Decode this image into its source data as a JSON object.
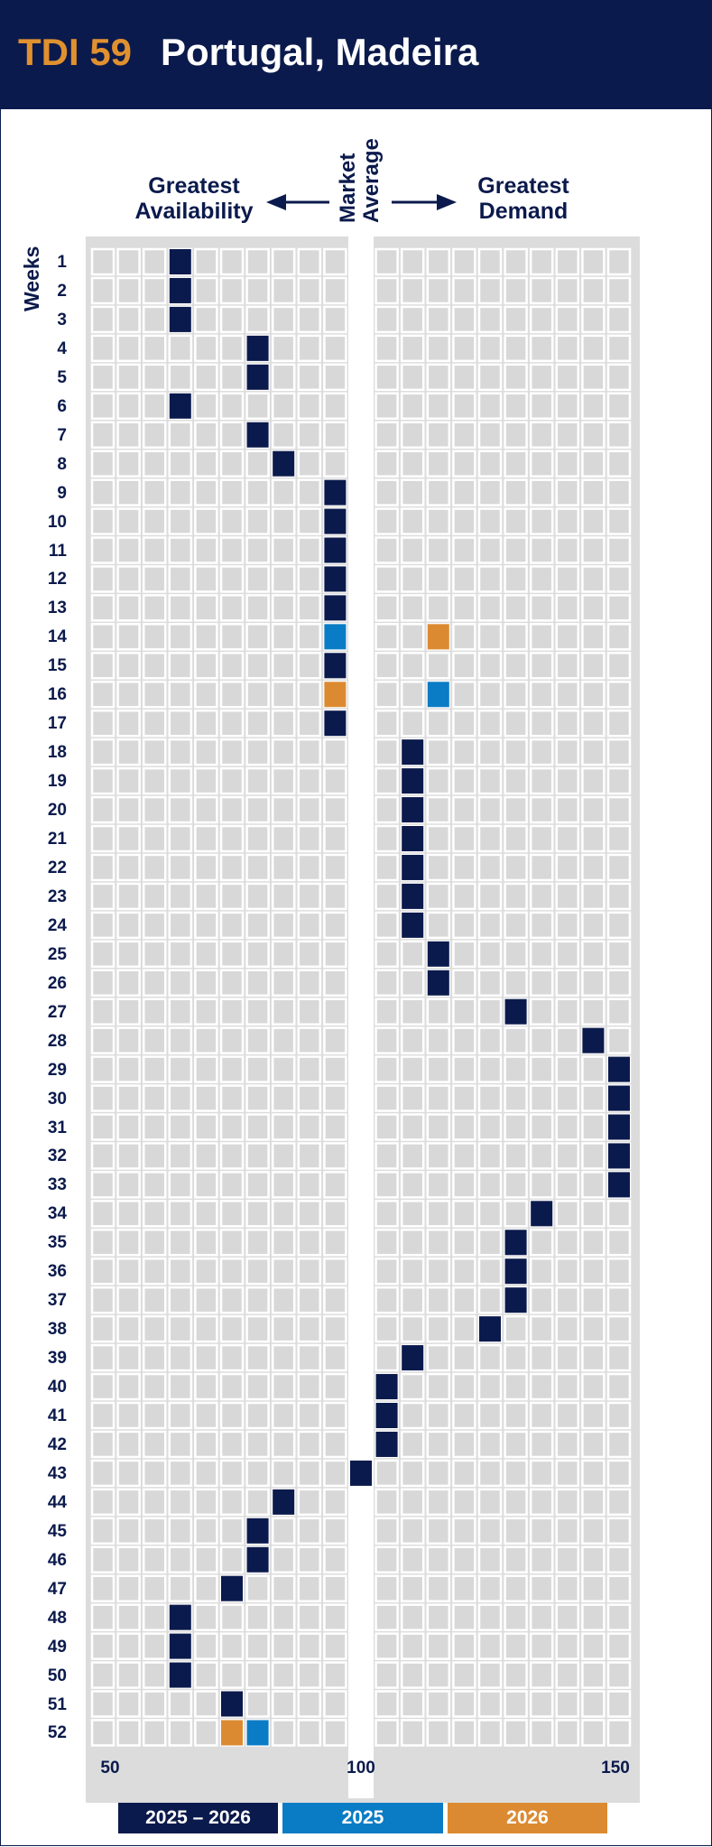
{
  "header": {
    "code": "TDI 59",
    "name": "Portugal, Madeira",
    "code_color": "#e0912f",
    "background": "#0b1a4c"
  },
  "labels": {
    "left_line1": "Greatest",
    "left_line2": "Availability",
    "middle_line1": "Market",
    "middle_line2": "Average",
    "right_line1": "Greatest",
    "right_line2": "Demand",
    "weeks": "Weeks"
  },
  "chart_data": {
    "type": "heatmap",
    "title": "Portugal, Madeira",
    "ylabel": "Weeks",
    "xlim": [
      50,
      150
    ],
    "x_ticks": [
      50,
      100,
      150
    ],
    "column_width": 5,
    "weeks": [
      1,
      2,
      3,
      4,
      5,
      6,
      7,
      8,
      9,
      10,
      11,
      12,
      13,
      14,
      15,
      16,
      17,
      18,
      19,
      20,
      21,
      22,
      23,
      24,
      25,
      26,
      27,
      28,
      29,
      30,
      31,
      32,
      33,
      34,
      35,
      36,
      37,
      38,
      39,
      40,
      41,
      42,
      43,
      44,
      45,
      46,
      47,
      48,
      49,
      50,
      51,
      52
    ],
    "series": [
      {
        "name": "2025 – 2026",
        "color": "#0b1a4c",
        "values": [
          65,
          65,
          65,
          80,
          80,
          65,
          80,
          85,
          95,
          95,
          95,
          95,
          95,
          null,
          95,
          null,
          95,
          110,
          110,
          110,
          110,
          110,
          110,
          110,
          115,
          115,
          130,
          145,
          150,
          150,
          150,
          150,
          150,
          135,
          130,
          130,
          130,
          125,
          110,
          105,
          105,
          105,
          100,
          85,
          80,
          80,
          75,
          65,
          65,
          65,
          75,
          null
        ]
      },
      {
        "name": "2025",
        "color": "#0a7cc5",
        "values": [
          null,
          null,
          null,
          null,
          null,
          null,
          null,
          null,
          null,
          null,
          null,
          null,
          null,
          95,
          null,
          115,
          null,
          null,
          null,
          null,
          null,
          null,
          null,
          null,
          null,
          null,
          null,
          null,
          null,
          null,
          null,
          null,
          null,
          null,
          null,
          null,
          null,
          null,
          null,
          null,
          null,
          null,
          null,
          null,
          null,
          null,
          null,
          null,
          null,
          null,
          null,
          80
        ]
      },
      {
        "name": "2026",
        "color": "#dc8a31",
        "values": [
          null,
          null,
          null,
          null,
          null,
          null,
          null,
          null,
          null,
          null,
          null,
          null,
          null,
          115,
          null,
          95,
          null,
          null,
          null,
          null,
          null,
          null,
          null,
          null,
          null,
          null,
          null,
          null,
          null,
          null,
          null,
          null,
          null,
          null,
          null,
          null,
          null,
          null,
          null,
          null,
          null,
          null,
          null,
          null,
          null,
          null,
          null,
          null,
          null,
          null,
          null,
          75
        ]
      }
    ],
    "legend": "bottom"
  }
}
